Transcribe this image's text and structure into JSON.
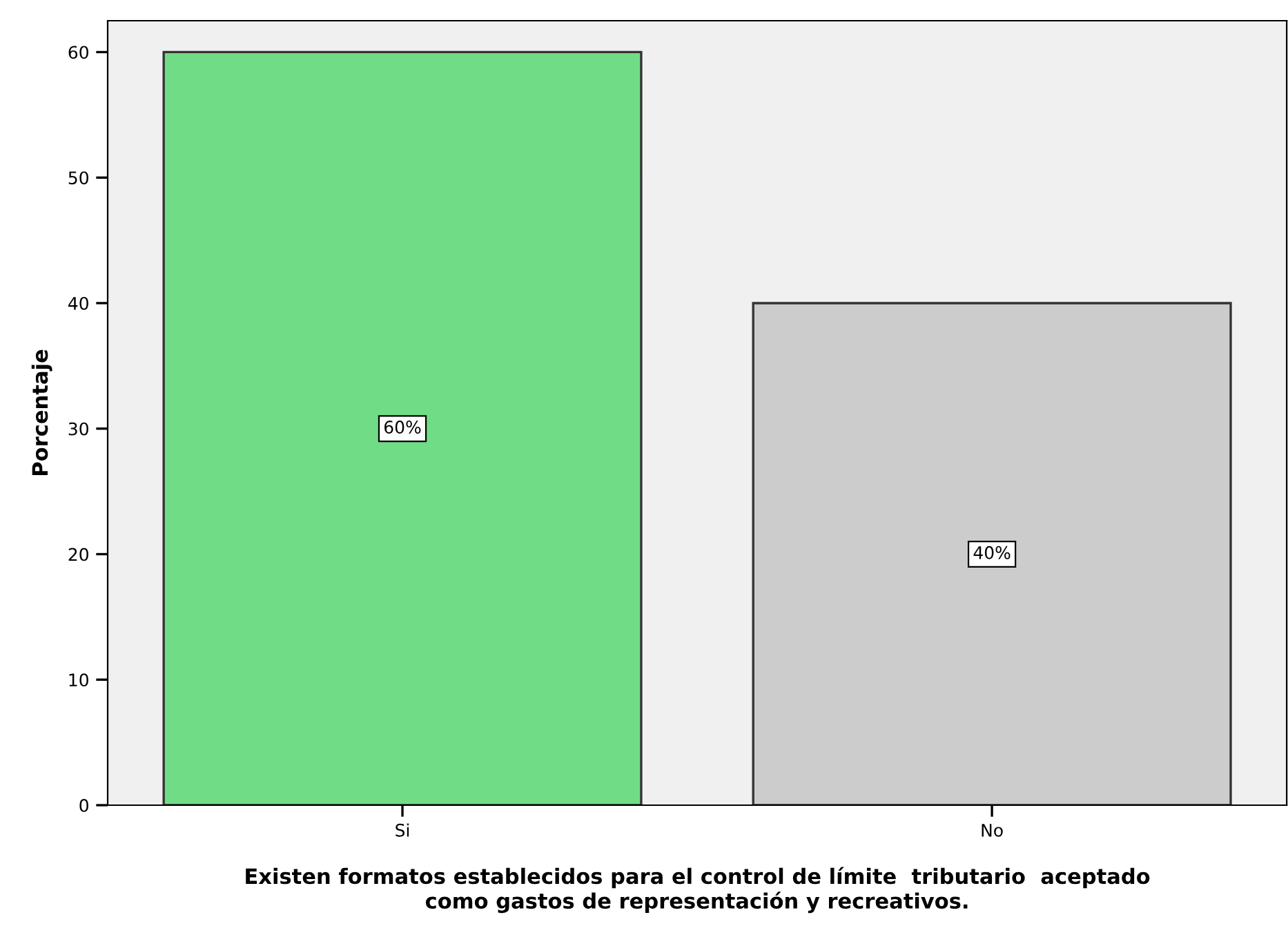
{
  "chart_data": {
    "type": "bar",
    "xlabel": "Existen formatos establecidos para el control de límite  tributario  aceptado\ncomo gastos de representación y recreativos.",
    "ylabel": "Porcentaje",
    "categories": [
      "Si",
      "No"
    ],
    "values": [
      60,
      40
    ],
    "colors": [
      "#71dc86",
      "#cccccc"
    ],
    "value_labels": [
      "60%",
      "40%"
    ],
    "ylim": [
      0,
      62.5
    ],
    "yticks": [
      0,
      10,
      20,
      30,
      40,
      50,
      60
    ],
    "grid": false,
    "legend": false
  }
}
